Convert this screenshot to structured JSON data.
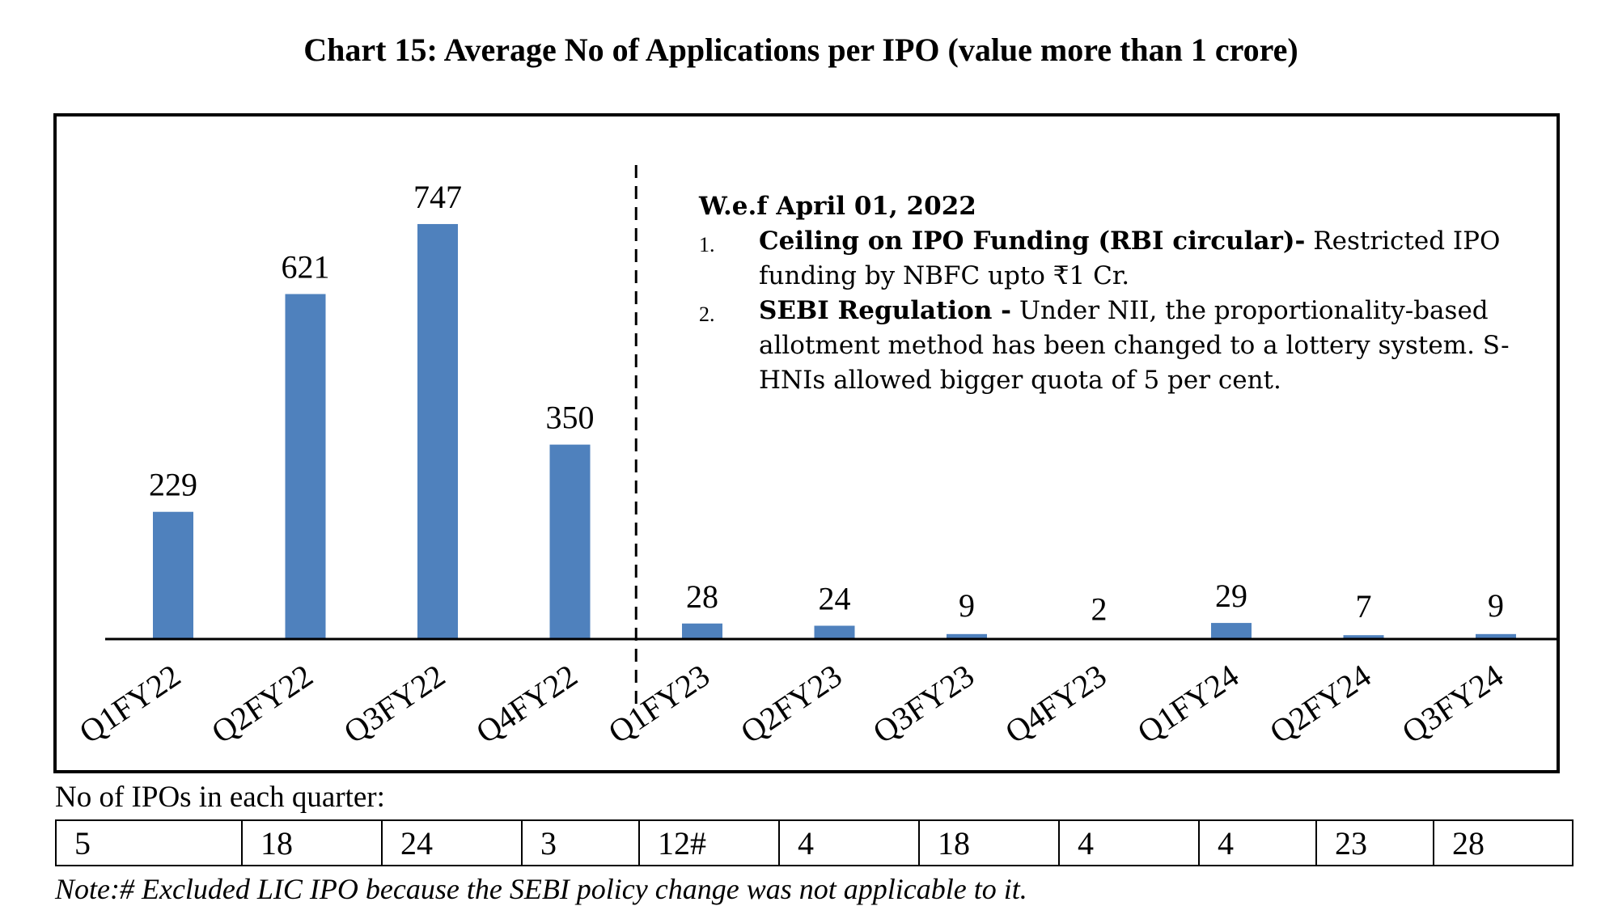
{
  "chart_data": {
    "type": "bar",
    "title": "Chart 15: Average No of Applications per IPO (value more than 1 crore)",
    "xlabel": "",
    "ylabel": "",
    "categories": [
      "Q1FY22",
      "Q2FY22",
      "Q3FY22",
      "Q4FY22",
      "Q1FY23",
      "Q2FY23",
      "Q3FY23",
      "Q4FY23",
      "Q1FY24",
      "Q2FY24",
      "Q3FY24"
    ],
    "values": [
      229,
      621,
      747,
      350,
      28,
      24,
      9,
      2,
      29,
      7,
      9
    ],
    "ylim": [
      0,
      800
    ],
    "grid": false,
    "legend": "none",
    "bar_color": "#4f81bd",
    "divider_after_category": "Q4FY22",
    "annotation": {
      "heading": "W.e.f April 01, 2022",
      "items": [
        {
          "number": "1.",
          "bold": "Ceiling on IPO Funding (RBI circular)-",
          "text": "Restricted IPO funding by NBFC upto ₹1 Cr."
        },
        {
          "number": "2.",
          "bold": "SEBI Regulation -",
          "text": "Under NII, the proportionality-based allotment method has been changed to a lottery system. S-HNIs allowed bigger quota of 5 per cent."
        }
      ]
    }
  },
  "ipo_table": {
    "caption": "No of IPOs in each quarter:",
    "values": [
      "5",
      "18",
      "24",
      "3",
      "12#",
      "4",
      "18",
      "4",
      "4",
      "23",
      "28"
    ]
  },
  "footnote": "Note:# Excluded LIC IPO because the SEBI policy change was not applicable to it."
}
